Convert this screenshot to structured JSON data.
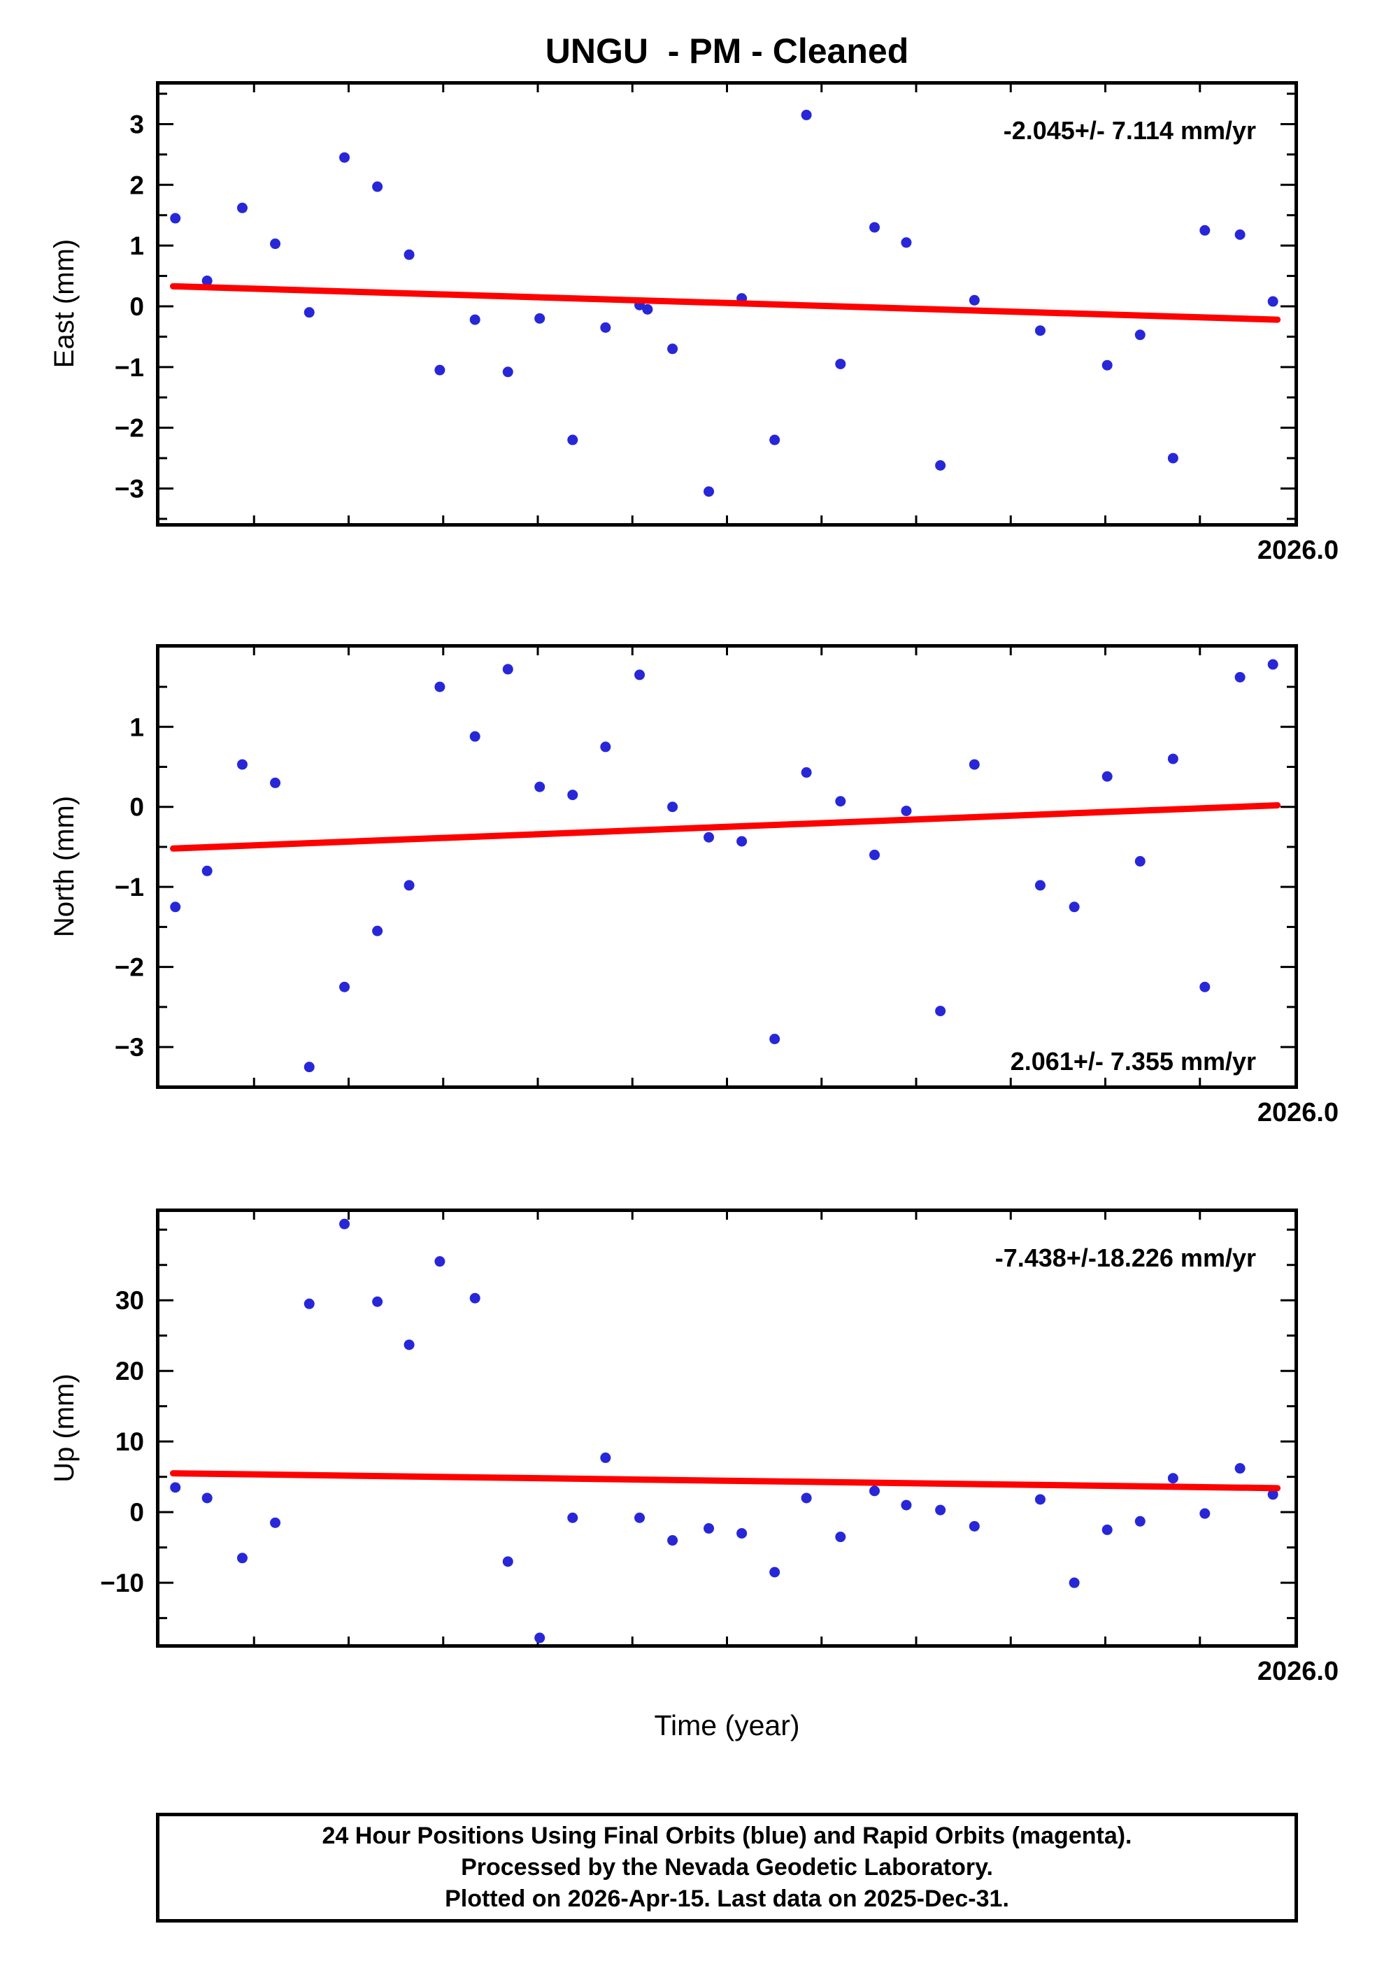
{
  "title": "UNGU  - PM - Cleaned",
  "xlabel": "Time (year)",
  "point_color": "#2727d8",
  "trend_color": "#ff0000",
  "frame_color": "#000000",
  "footer": {
    "line1": "24 Hour Positions Using Final Orbits (blue) and Rapid Orbits (magenta).",
    "line2": "Processed by the Nevada Geodetic Laboratory.",
    "line3": "Plotted on 2026-Apr-15. Last data on 2025-Dec-31."
  },
  "chart_data": [
    {
      "type": "scatter",
      "name": "east",
      "ylabel": "East (mm)",
      "x_corner_label": "2026.0",
      "ylim": [
        -3.57,
        3.65
      ],
      "yticks": [
        3,
        2,
        1,
        0,
        -1,
        -2,
        -3
      ],
      "ytick_minor": 0.5,
      "annotation": "-2.045+/- 7.114 mm/yr",
      "annotation_pos": "top-right",
      "trend": {
        "x": [
          0.012,
          0.985
        ],
        "y": [
          0.33,
          -0.22
        ]
      },
      "points": [
        [
          0.014,
          1.45
        ],
        [
          0.042,
          0.42
        ],
        [
          0.073,
          1.62
        ],
        [
          0.102,
          1.03
        ],
        [
          0.132,
          -0.1
        ],
        [
          0.163,
          2.45
        ],
        [
          0.192,
          1.97
        ],
        [
          0.22,
          0.85
        ],
        [
          0.247,
          -1.05
        ],
        [
          0.278,
          -0.22
        ],
        [
          0.307,
          -1.08
        ],
        [
          0.335,
          -0.2
        ],
        [
          0.364,
          -2.2
        ],
        [
          0.393,
          -0.35
        ],
        [
          0.423,
          0.02
        ],
        [
          0.43,
          -0.05
        ],
        [
          0.452,
          -0.7
        ],
        [
          0.484,
          -3.05
        ],
        [
          0.513,
          0.13
        ],
        [
          0.542,
          -2.2
        ],
        [
          0.57,
          3.15
        ],
        [
          0.6,
          -0.95
        ],
        [
          0.63,
          1.3
        ],
        [
          0.658,
          1.05
        ],
        [
          0.688,
          -2.62
        ],
        [
          0.718,
          0.1
        ],
        [
          0.776,
          -0.4
        ],
        [
          0.835,
          -0.97
        ],
        [
          0.864,
          -0.47
        ],
        [
          0.893,
          -2.5
        ],
        [
          0.921,
          1.25
        ],
        [
          0.952,
          1.18
        ],
        [
          0.981,
          0.08
        ]
      ]
    },
    {
      "type": "scatter",
      "name": "north",
      "ylabel": "North (mm)",
      "x_corner_label": "2026.0",
      "ylim": [
        -3.48,
        1.99
      ],
      "yticks": [
        1,
        0,
        -1,
        -2,
        -3
      ],
      "ytick_minor": 0.5,
      "annotation": "2.061+/- 7.355 mm/yr",
      "annotation_pos": "bottom-right",
      "trend": {
        "x": [
          0.012,
          0.985
        ],
        "y": [
          -0.52,
          0.02
        ]
      },
      "points": [
        [
          0.014,
          -1.25
        ],
        [
          0.042,
          -0.8
        ],
        [
          0.073,
          0.53
        ],
        [
          0.102,
          0.3
        ],
        [
          0.132,
          -3.25
        ],
        [
          0.163,
          -2.25
        ],
        [
          0.192,
          -1.55
        ],
        [
          0.22,
          -0.98
        ],
        [
          0.247,
          1.5
        ],
        [
          0.278,
          0.88
        ],
        [
          0.307,
          1.72
        ],
        [
          0.335,
          0.25
        ],
        [
          0.364,
          0.15
        ],
        [
          0.393,
          0.75
        ],
        [
          0.423,
          1.65
        ],
        [
          0.452,
          0.0
        ],
        [
          0.484,
          -0.38
        ],
        [
          0.513,
          -0.43
        ],
        [
          0.542,
          -2.9
        ],
        [
          0.57,
          0.43
        ],
        [
          0.6,
          0.07
        ],
        [
          0.63,
          -0.6
        ],
        [
          0.658,
          -0.05
        ],
        [
          0.688,
          -2.55
        ],
        [
          0.718,
          0.53
        ],
        [
          0.776,
          -0.98
        ],
        [
          0.806,
          -1.25
        ],
        [
          0.835,
          0.38
        ],
        [
          0.864,
          -0.68
        ],
        [
          0.893,
          0.6
        ],
        [
          0.921,
          -2.25
        ],
        [
          0.952,
          1.62
        ],
        [
          0.981,
          1.78
        ]
      ]
    },
    {
      "type": "scatter",
      "name": "up",
      "ylabel": "Up (mm)",
      "x_corner_label": "2026.0",
      "ylim": [
        -18.7,
        42.5
      ],
      "yticks": [
        30,
        20,
        10,
        0,
        -10
      ],
      "ytick_minor": 5,
      "annotation": "-7.438+/-18.226 mm/yr",
      "annotation_pos": "top-right",
      "trend": {
        "x": [
          0.012,
          0.985
        ],
        "y": [
          5.5,
          3.4
        ]
      },
      "points": [
        [
          0.014,
          3.5
        ],
        [
          0.042,
          2.0
        ],
        [
          0.073,
          -6.5
        ],
        [
          0.102,
          -1.5
        ],
        [
          0.132,
          29.5
        ],
        [
          0.163,
          40.8
        ],
        [
          0.192,
          29.8
        ],
        [
          0.22,
          23.7
        ],
        [
          0.247,
          35.5
        ],
        [
          0.278,
          30.3
        ],
        [
          0.307,
          -7.0
        ],
        [
          0.335,
          -17.8
        ],
        [
          0.364,
          -0.8
        ],
        [
          0.393,
          7.7
        ],
        [
          0.423,
          -0.8
        ],
        [
          0.452,
          -4.0
        ],
        [
          0.484,
          -2.3
        ],
        [
          0.513,
          -3.0
        ],
        [
          0.542,
          -8.5
        ],
        [
          0.57,
          2.0
        ],
        [
          0.6,
          -3.5
        ],
        [
          0.63,
          3.0
        ],
        [
          0.658,
          1.0
        ],
        [
          0.688,
          0.3
        ],
        [
          0.718,
          -2.0
        ],
        [
          0.776,
          1.8
        ],
        [
          0.806,
          -10.0
        ],
        [
          0.835,
          -2.5
        ],
        [
          0.864,
          -1.3
        ],
        [
          0.893,
          4.8
        ],
        [
          0.921,
          -0.2
        ],
        [
          0.952,
          6.2
        ],
        [
          0.981,
          2.5
        ]
      ]
    }
  ]
}
